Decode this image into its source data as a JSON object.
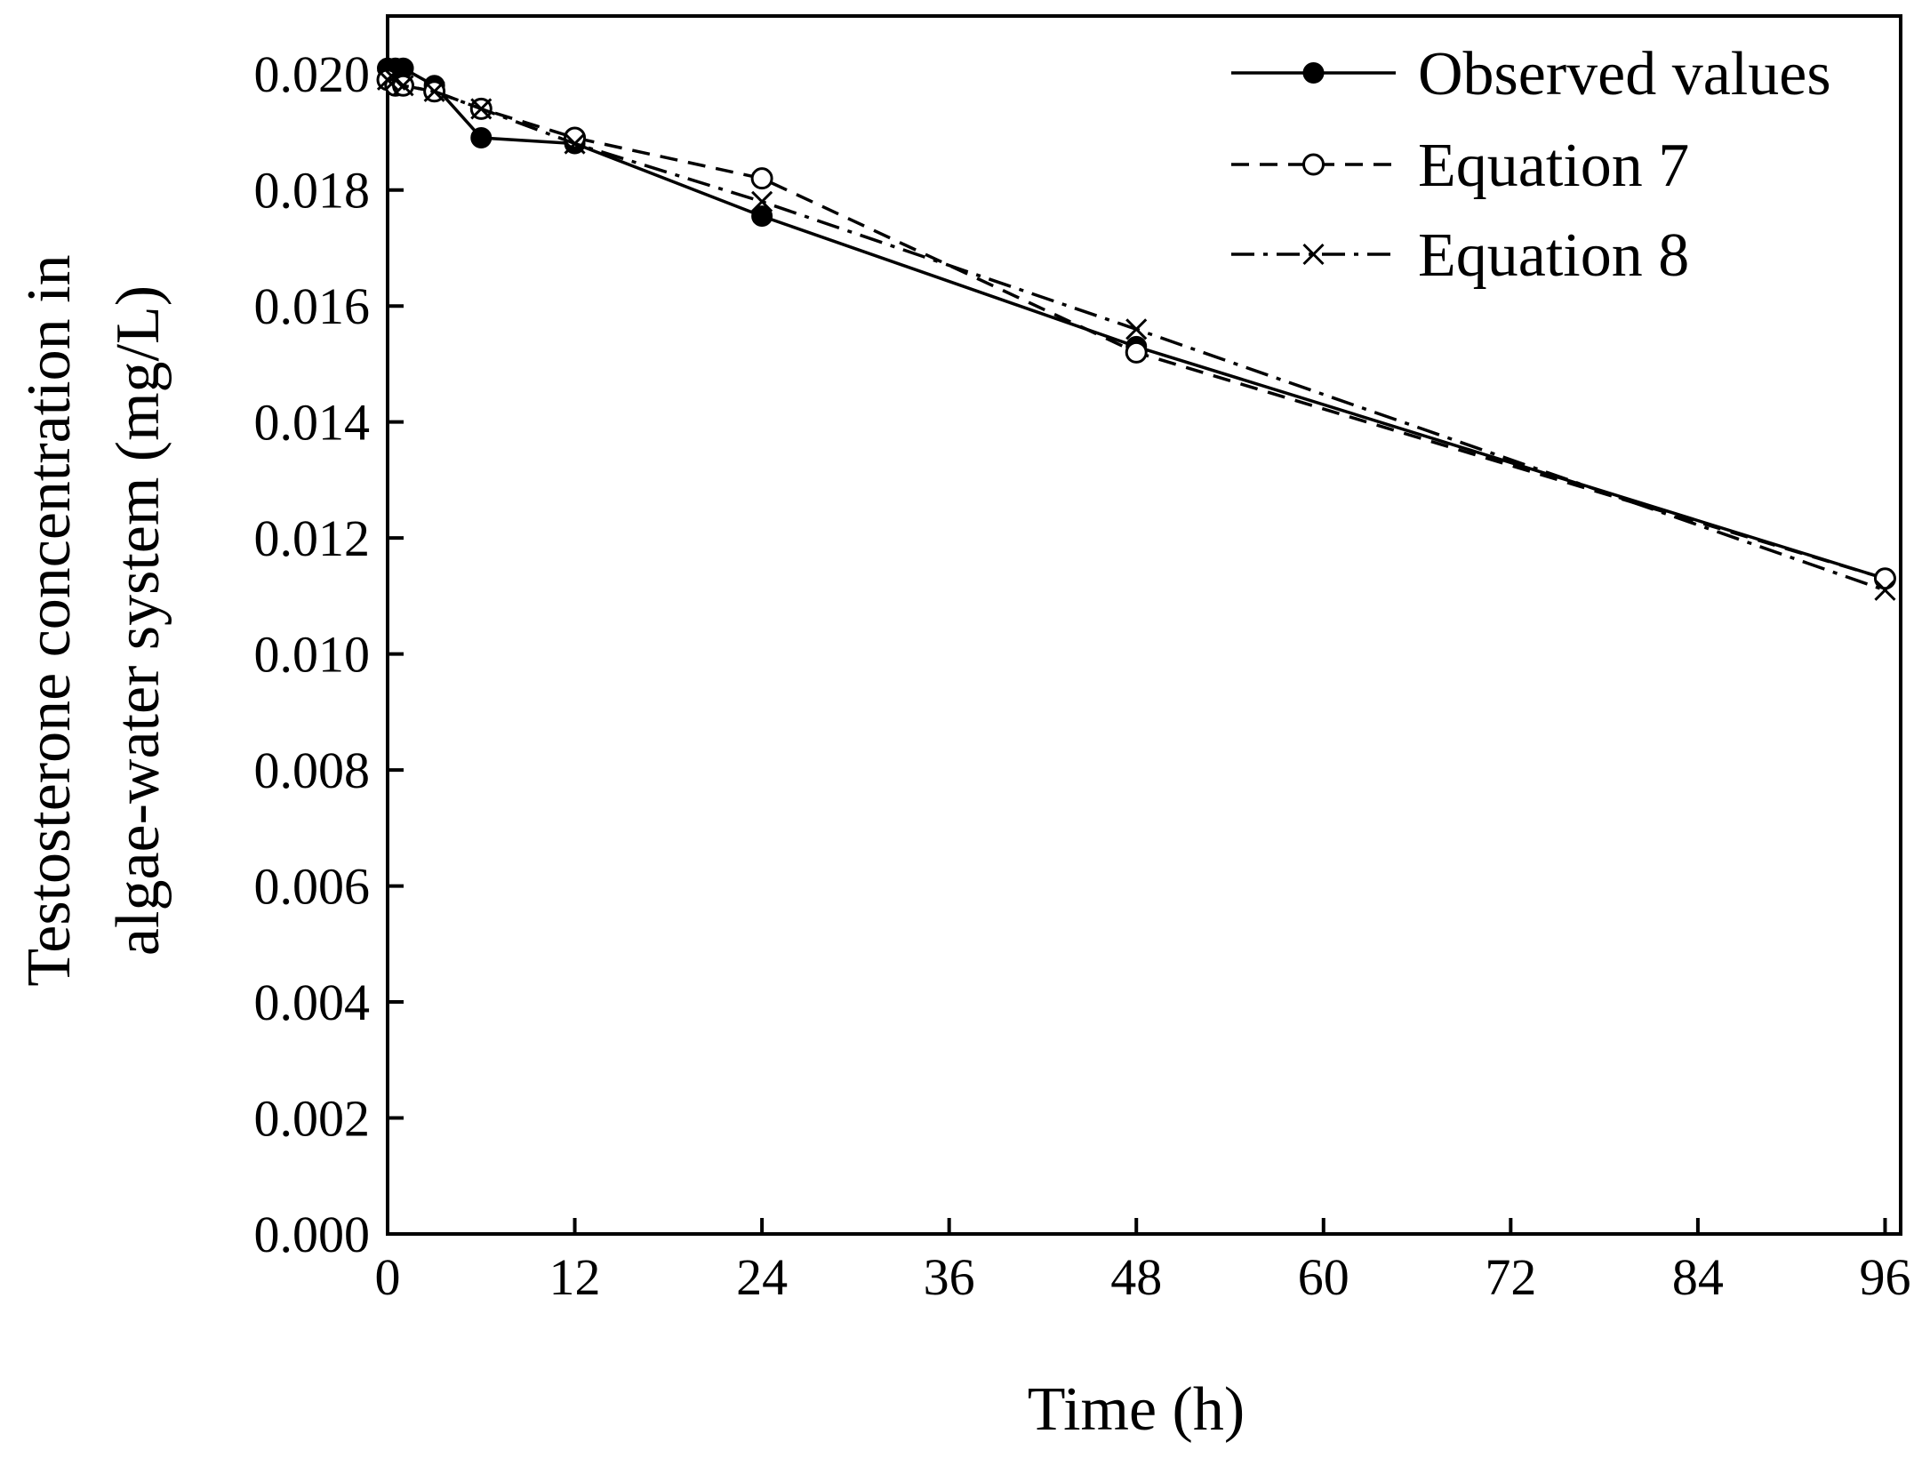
{
  "chart_data": {
    "type": "line",
    "title": "",
    "xlabel": "Time (h)",
    "ylabel_line1": "Testosterone concentration in",
    "ylabel_line2": "algae-water system (mg/L)",
    "xlim": [
      0,
      97
    ],
    "ylim": [
      0,
      0.021
    ],
    "xticks": [
      0,
      12,
      24,
      36,
      48,
      60,
      72,
      84,
      96
    ],
    "xtick_labels": [
      "0",
      "12",
      "24",
      "36",
      "48",
      "60",
      "72",
      "84",
      "96"
    ],
    "yticks": [
      0,
      0.002,
      0.004,
      0.006,
      0.008,
      0.01,
      0.012,
      0.014,
      0.016,
      0.018,
      0.02
    ],
    "ytick_labels": [
      "0.000",
      "0.002",
      "0.004",
      "0.006",
      "0.008",
      "0.010",
      "0.012",
      "0.014",
      "0.016",
      "0.018",
      "0.020"
    ],
    "grid": false,
    "legend_position": "top-right",
    "series": [
      {
        "name": "Observed values",
        "style": "solid",
        "marker": "filled-circle",
        "x": [
          0,
          0.5,
          1,
          3,
          6,
          12,
          24,
          48,
          96
        ],
        "y": [
          0.0201,
          0.0201,
          0.0201,
          0.0198,
          0.0189,
          0.0188,
          0.01755,
          0.0153,
          0.0113
        ]
      },
      {
        "name": "Equation 7",
        "style": "dashed",
        "marker": "open-circle",
        "x": [
          0,
          0.5,
          1,
          3,
          6,
          12,
          24,
          48,
          96
        ],
        "y": [
          0.0199,
          0.0198,
          0.0198,
          0.0197,
          0.0194,
          0.0189,
          0.0182,
          0.0152,
          0.0113
        ]
      },
      {
        "name": "Equation 8",
        "style": "dash-dot",
        "marker": "x",
        "x": [
          0,
          0.5,
          1,
          3,
          6,
          12,
          24,
          48,
          96
        ],
        "y": [
          0.0199,
          0.0199,
          0.0198,
          0.0197,
          0.0194,
          0.0188,
          0.0178,
          0.0156,
          0.0111
        ]
      }
    ]
  }
}
